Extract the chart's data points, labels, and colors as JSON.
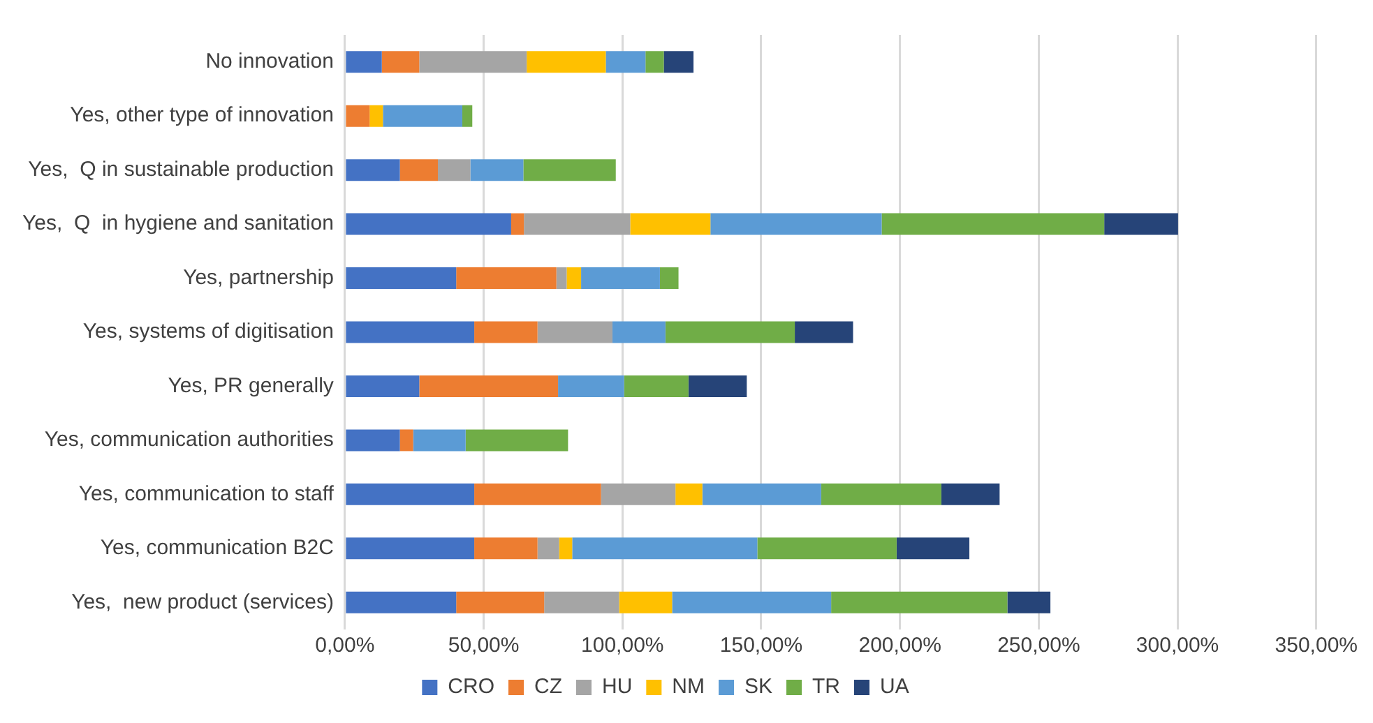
{
  "chart_data": {
    "type": "bar",
    "orientation": "horizontal",
    "stacked": true,
    "categories": [
      "No innovation",
      "Yes, other type of innovation",
      "Yes,  Q in sustainable production",
      "Yes,  Q  in hygiene and sanitation",
      "Yes, partnership",
      "Yes, systems of digitisation",
      "Yes, PR generally",
      "Yes, communication authorities",
      "Yes, communication to staff",
      "Yes, communication B2C",
      "Yes,  new product (services)"
    ],
    "series": [
      {
        "name": "CRO",
        "color": "#4472c4",
        "values": [
          13.3,
          0,
          19.8,
          59.9,
          40.1,
          46.6,
          26.8,
          19.8,
          46.6,
          46.6,
          40.1
        ]
      },
      {
        "name": "CZ",
        "color": "#ed7d31",
        "values": [
          13.5,
          8.9,
          13.7,
          4.6,
          36.1,
          22.8,
          50.0,
          4.8,
          45.7,
          22.8,
          31.7
        ]
      },
      {
        "name": "HU",
        "color": "#a5a5a5",
        "values": [
          38.7,
          0,
          11.7,
          38.3,
          3.7,
          27.0,
          0,
          0,
          26.8,
          7.8,
          27.0
        ]
      },
      {
        "name": "NM",
        "color": "#ffc000",
        "values": [
          28.5,
          4.8,
          0,
          28.9,
          5.2,
          0,
          0,
          0,
          9.7,
          4.7,
          19.1
        ]
      },
      {
        "name": "SK",
        "color": "#5b9bd5",
        "values": [
          14.3,
          28.6,
          19.1,
          61.7,
          28.4,
          19.1,
          23.8,
          18.9,
          42.8,
          66.7,
          57.3
        ]
      },
      {
        "name": "TR",
        "color": "#70ad47",
        "values": [
          6.6,
          3.6,
          33.3,
          80.2,
          6.7,
          46.6,
          23.2,
          36.9,
          43.3,
          50.2,
          63.5
        ]
      },
      {
        "name": "UA",
        "color": "#264478",
        "values": [
          10.7,
          0,
          0,
          26.6,
          0,
          21.0,
          21.0,
          0,
          21.0,
          26.2,
          15.5
        ]
      }
    ],
    "xlim": [
      0,
      350
    ],
    "xticks": [
      {
        "value": 0,
        "label": "0,00%"
      },
      {
        "value": 50,
        "label": "50,00%"
      },
      {
        "value": 100,
        "label": "100,00%"
      },
      {
        "value": 150,
        "label": "150,00%"
      },
      {
        "value": 200,
        "label": "200,00%"
      },
      {
        "value": 250,
        "label": "250,00%"
      },
      {
        "value": 300,
        "label": "300,00%"
      },
      {
        "value": 350,
        "label": "350,00%"
      }
    ],
    "grid": "x",
    "legend": "bottom"
  }
}
